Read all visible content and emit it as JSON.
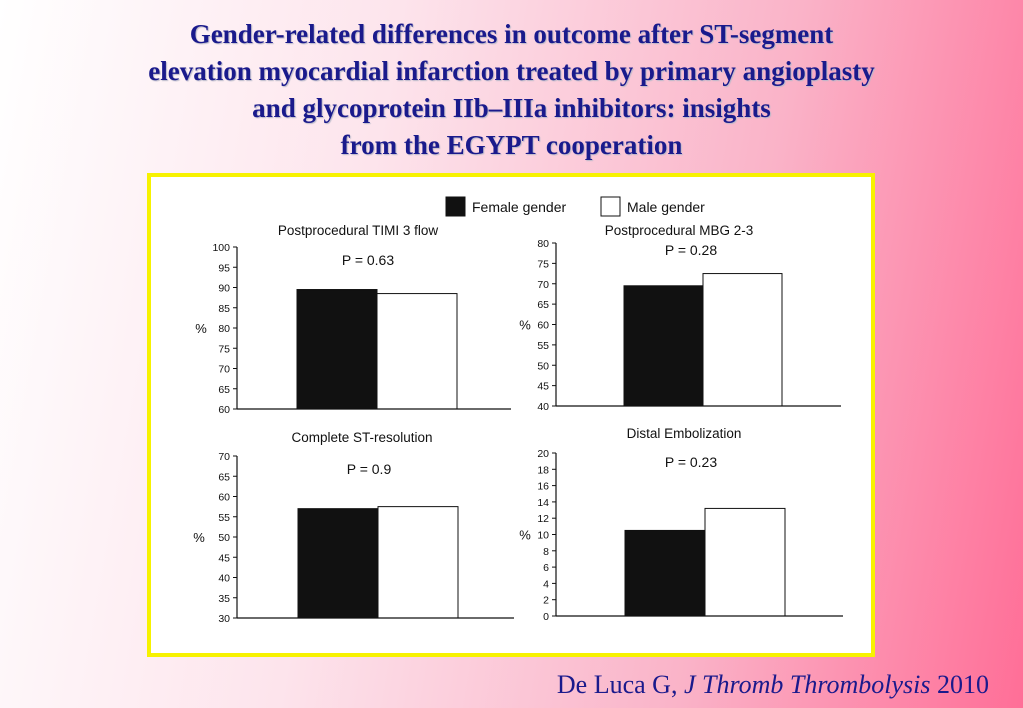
{
  "title_lines": [
    "Gender-related differences in outcome after ST-segment",
    "elevation myocardial infarction treated by primary angioplasty",
    "and glycoprotein IIb–IIIa inhibitors: insights",
    "from the EGYPT cooperation"
  ],
  "citation": {
    "author": "De Luca G,",
    "journal": "J Thromb Thrombolysis",
    "year": "2010"
  },
  "legend": [
    {
      "label": "Female gender",
      "color": "#111111"
    },
    {
      "label": "Male gender",
      "color": "#ffffff"
    }
  ],
  "chart_data": [
    {
      "type": "bar",
      "title": "Postprocedural TIMI 3 flow",
      "annotation": "P = 0.63",
      "ylabel": "%",
      "ylim": [
        60,
        100
      ],
      "yticks": [
        100,
        95,
        90,
        85,
        80,
        75,
        70,
        65,
        60
      ],
      "series": [
        {
          "name": "Female gender",
          "values": [
            89.5
          ]
        },
        {
          "name": "Male gender",
          "values": [
            88.5
          ]
        }
      ]
    },
    {
      "type": "bar",
      "title": "Postprocedural MBG 2-3",
      "annotation": "P = 0.28",
      "ylabel": "%",
      "ylim": [
        40,
        80
      ],
      "yticks": [
        80,
        75,
        70,
        65,
        60,
        55,
        50,
        45,
        40
      ],
      "series": [
        {
          "name": "Female gender",
          "values": [
            69.5
          ]
        },
        {
          "name": "Male gender",
          "values": [
            72.5
          ]
        }
      ]
    },
    {
      "type": "bar",
      "title": "Complete ST-resolution",
      "annotation": "P = 0.9",
      "ylabel": "%",
      "ylim": [
        30,
        70
      ],
      "yticks": [
        70,
        65,
        60,
        55,
        50,
        45,
        40,
        35,
        30
      ],
      "series": [
        {
          "name": "Female gender",
          "values": [
            57
          ]
        },
        {
          "name": "Male gender",
          "values": [
            57.5
          ]
        }
      ]
    },
    {
      "type": "bar",
      "title": "Distal Embolization",
      "annotation": "P = 0.23",
      "ylabel": "%",
      "ylim": [
        0,
        20
      ],
      "yticks": [
        20,
        18,
        16,
        14,
        12,
        10,
        8,
        6,
        4,
        2,
        0
      ],
      "series": [
        {
          "name": "Female gender",
          "values": [
            10.5
          ]
        },
        {
          "name": "Male gender",
          "values": [
            13.2
          ]
        }
      ]
    }
  ]
}
